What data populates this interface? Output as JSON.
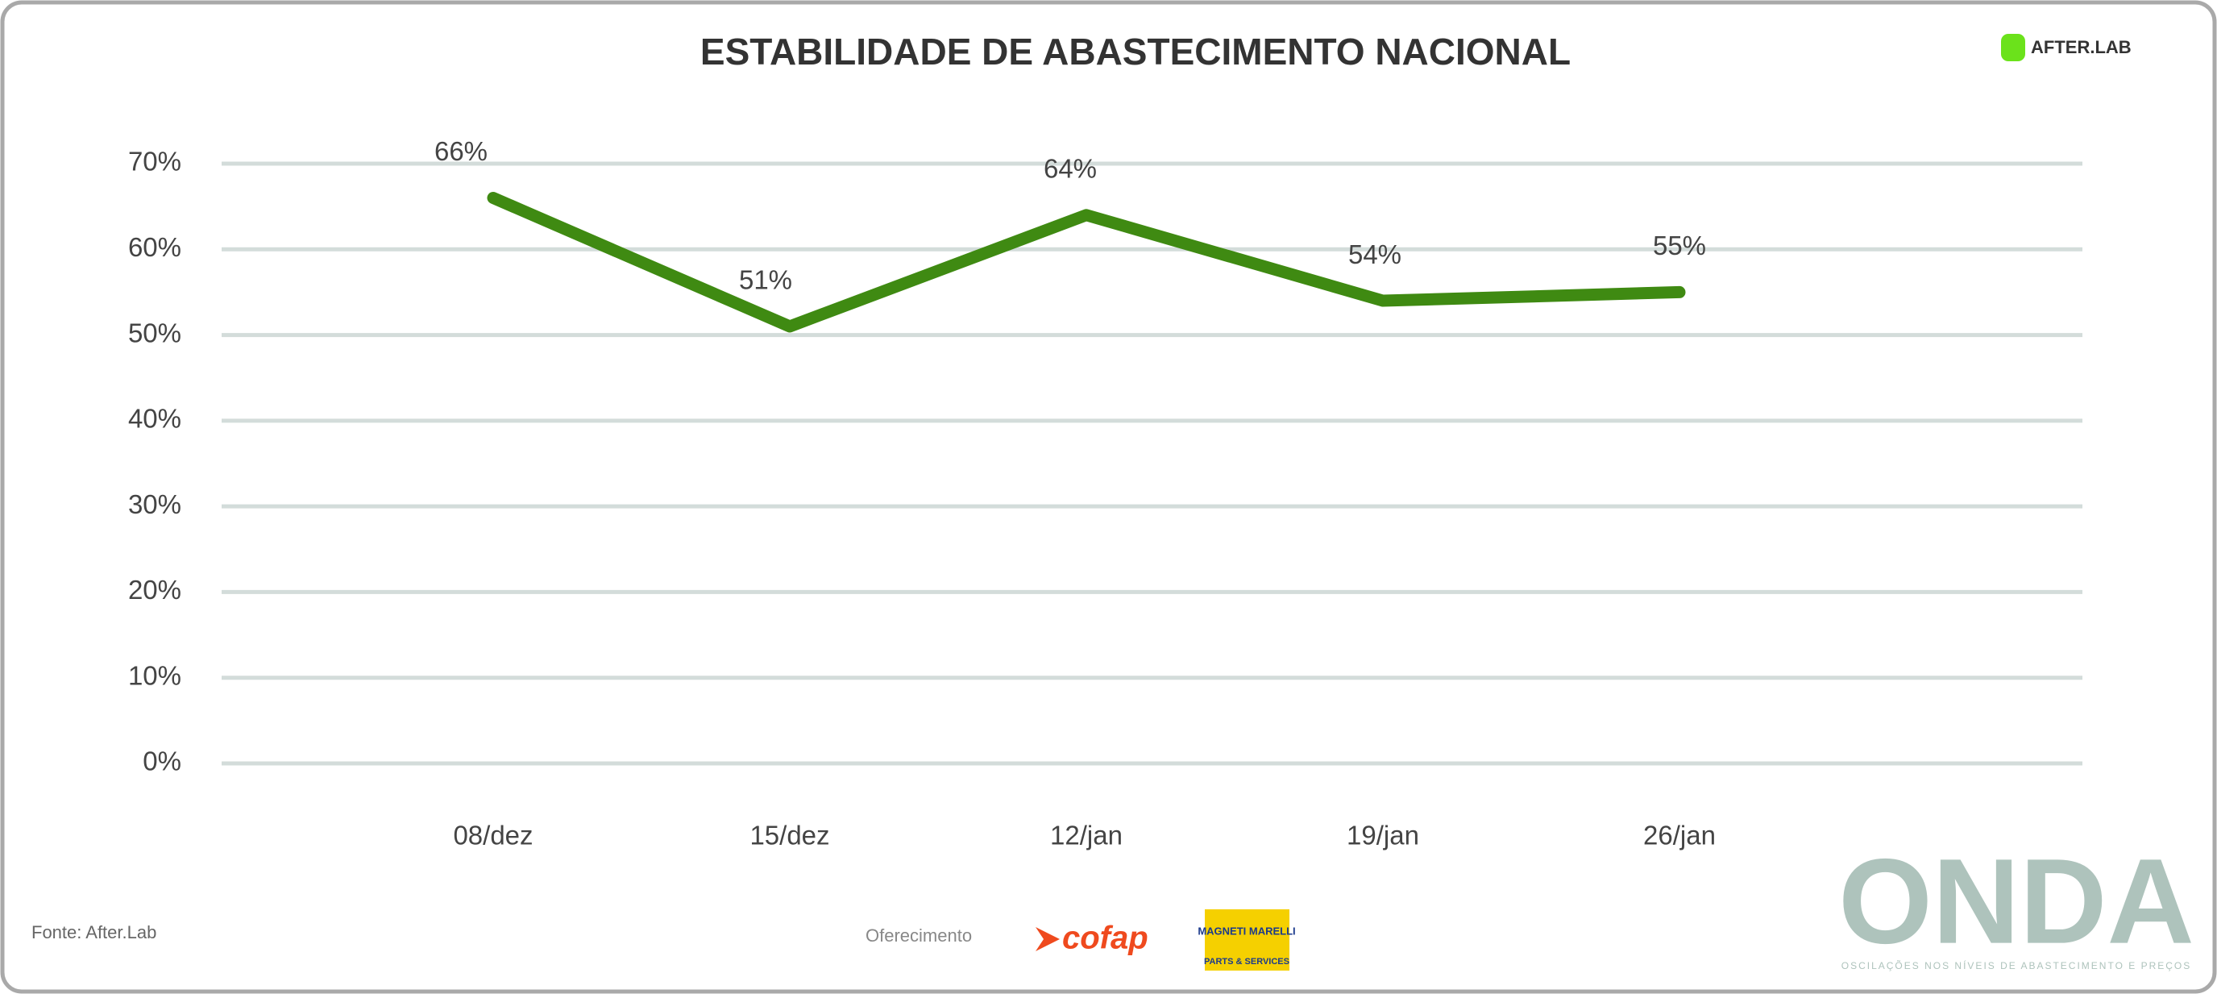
{
  "chart_data": {
    "type": "line",
    "title": "ESTABILIDADE DE ABASTECIMENTO NACIONAL",
    "categories": [
      "08/dez",
      "15/dez",
      "12/jan",
      "19/jan",
      "26/jan"
    ],
    "values": [
      66,
      51,
      64,
      54,
      55
    ],
    "value_labels": [
      "66%",
      "51%",
      "64%",
      "54%",
      "55%"
    ],
    "color": "#3f8a12",
    "ylim": [
      0,
      70
    ],
    "yticks": [
      {
        "value": 0,
        "label": "0%"
      },
      {
        "value": 10,
        "label": "10%"
      },
      {
        "value": 20,
        "label": "20%"
      },
      {
        "value": 30,
        "label": "30%"
      },
      {
        "value": 40,
        "label": "40%"
      },
      {
        "value": 50,
        "label": "50%"
      },
      {
        "value": 60,
        "label": "60%"
      },
      {
        "value": 70,
        "label": "70%"
      }
    ],
    "grid": true
  },
  "footer": {
    "source": "Fonte: After.Lab",
    "sponsor_label": "Oferecimento",
    "sponsor_1": "cofap",
    "sponsor_2": "MAGNETI MARELLI",
    "sponsor_2_sub": "PARTS & SERVICES"
  },
  "brand": {
    "logo": "AFTER.LAB",
    "name": "ONDA",
    "tagline": "OSCILAÇÕES NOS NÍVEIS DE ABASTECIMENTO E PREÇOS"
  }
}
